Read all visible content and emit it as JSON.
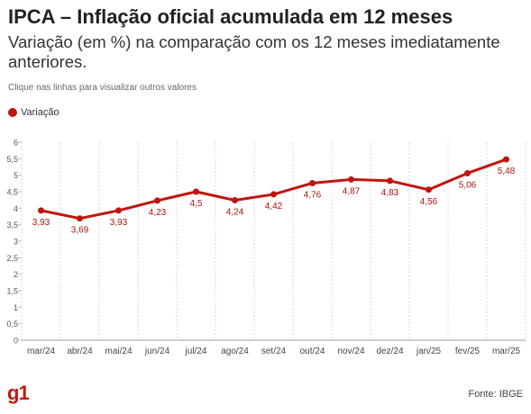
{
  "header": {
    "title": "IPCA – Inflação oficial acumulada em 12 meses",
    "subtitle": "Variação (em %) na comparação com os 12 meses imediatamente anteriores.",
    "hint": "Clique nas linhas para visualizar outros valores"
  },
  "legend": {
    "label": "Variação",
    "color": "#c0150f"
  },
  "footer": {
    "logo": "g1",
    "source": "Fonte: IBGE",
    "logo_icon": "g1-logo-icon"
  },
  "chart_data": {
    "type": "line",
    "categories": [
      "mar/24",
      "abr/24",
      "mai/24",
      "jun/24",
      "jul/24",
      "ago/24",
      "set/24",
      "out/24",
      "nov/24",
      "dez/24",
      "jan/25",
      "fev/25",
      "mar/25"
    ],
    "series": [
      {
        "name": "Variação",
        "values": [
          3.93,
          3.69,
          3.93,
          4.23,
          4.5,
          4.24,
          4.42,
          4.76,
          4.87,
          4.83,
          4.56,
          5.06,
          5.48
        ],
        "labels": [
          "3,93",
          "3,69",
          "3,93",
          "4,23",
          "4,5",
          "4,24",
          "4,42",
          "4,76",
          "4,87",
          "4,83",
          "4,56",
          "5,06",
          "5,48"
        ],
        "color": "#c0150f"
      }
    ],
    "y_ticks": [
      "0",
      "0,5",
      "1",
      "1,5",
      "2",
      "2,5",
      "3",
      "3,5",
      "4",
      "4,5",
      "5",
      "5,5",
      "6"
    ],
    "ylim": [
      0,
      6
    ],
    "grid": "vertical",
    "legend_position": "top-left"
  }
}
